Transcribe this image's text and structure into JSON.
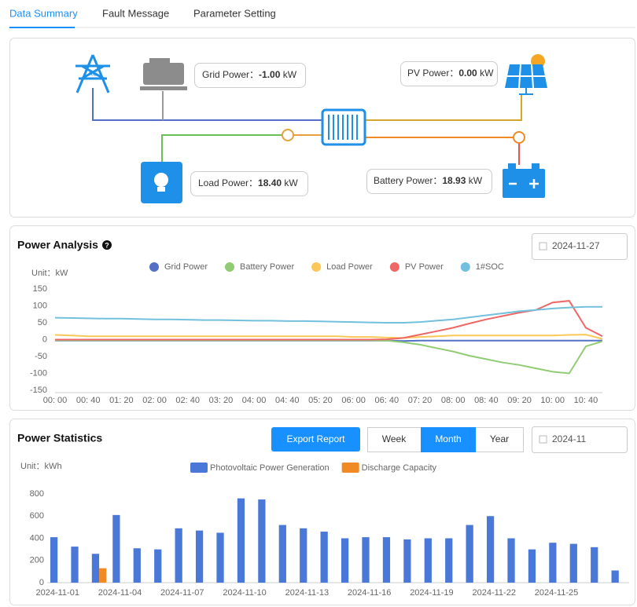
{
  "tabs": [
    "Data Summary",
    "Fault Message",
    "Parameter Setting"
  ],
  "overview": {
    "grid": {
      "label": "Grid Power：",
      "value": "-1.00",
      "unit": "kW"
    },
    "pv": {
      "label": "PV Power：",
      "value": "0.00",
      "unit": "kW"
    },
    "load": {
      "label": "Load Power：",
      "value": "18.40",
      "unit": "kW"
    },
    "battery": {
      "label": "Battery Power：",
      "value": "18.93",
      "unit": "kW"
    }
  },
  "analysis_panel": {
    "date": "2024-11-27"
  },
  "statistics_panel": {
    "export": "Export Report",
    "periods": [
      "Week",
      "Month",
      "Year"
    ],
    "date": "2024-11"
  },
  "chart_data": [
    {
      "type": "line",
      "title": "Power Analysis",
      "y_label": "Unit：kW",
      "x": [
        "00: 00",
        null,
        "00: 40",
        null,
        "01: 20",
        null,
        "02: 00",
        null,
        "02: 40",
        null,
        "03: 20",
        null,
        "04: 00",
        null,
        "04: 40",
        null,
        "05: 20",
        null,
        "06: 00",
        null,
        "06: 40",
        null,
        "07: 20",
        null,
        "08: 00",
        null,
        "08: 40",
        null,
        "09: 20",
        null,
        "10: 00",
        null,
        "10: 40",
        null
      ],
      "ylim": [
        -150,
        150
      ],
      "yticks": [
        -150,
        -100,
        -50,
        0,
        50,
        100,
        150
      ],
      "grid": false,
      "series": [
        {
          "name": "Grid Power",
          "color": "#5470c6",
          "values": [
            -3,
            -3,
            -3,
            -3,
            -3,
            -3,
            -3,
            -3,
            -3,
            -3,
            -3,
            -3,
            -3,
            -3,
            -3,
            -3,
            -3,
            -3,
            -3,
            -3,
            -3,
            -4,
            -3,
            -3,
            -3,
            -3,
            -3,
            -3,
            -3,
            -3,
            -3,
            -3,
            -3,
            -3
          ]
        },
        {
          "name": "Battery Power",
          "color": "#91cc75",
          "values": [
            -2,
            -2,
            -2,
            -2,
            -2,
            -2,
            -2,
            -2,
            -2,
            -2,
            -2,
            -2,
            -2,
            -2,
            -2,
            -2,
            -2,
            -2,
            -2,
            -2,
            -3,
            -8,
            -15,
            -25,
            -35,
            -48,
            -58,
            -68,
            -75,
            -85,
            -95,
            -100,
            -20,
            -5
          ]
        },
        {
          "name": "Load Power",
          "color": "#fac858",
          "values": [
            14,
            12,
            10,
            10,
            10,
            10,
            10,
            10,
            10,
            10,
            10,
            10,
            10,
            10,
            10,
            10,
            10,
            10,
            8,
            8,
            6,
            5,
            8,
            10,
            12,
            12,
            12,
            12,
            12,
            12,
            12,
            14,
            15,
            2
          ]
        },
        {
          "name": "PV Power",
          "color": "#ee6666",
          "values": [
            0,
            0,
            0,
            0,
            0,
            0,
            0,
            0,
            0,
            0,
            0,
            0,
            0,
            0,
            0,
            0,
            0,
            0,
            0,
            0,
            1,
            5,
            15,
            25,
            35,
            48,
            60,
            70,
            80,
            88,
            110,
            115,
            35,
            10
          ]
        },
        {
          "name": "1#SOC",
          "color": "#73c0de",
          "values": [
            65,
            64,
            63,
            62,
            62,
            61,
            60,
            60,
            59,
            58,
            58,
            57,
            56,
            56,
            55,
            55,
            54,
            53,
            52,
            51,
            50,
            50,
            52,
            56,
            60,
            66,
            72,
            78,
            84,
            88,
            92,
            95,
            97,
            97
          ]
        }
      ]
    },
    {
      "type": "bar",
      "title": "Power Statistics",
      "y_label": "Unit：kWh",
      "categories": [
        "2024-11-01",
        null,
        null,
        "2024-11-04",
        null,
        null,
        "2024-11-07",
        null,
        null,
        "2024-11-10",
        null,
        null,
        "2024-11-13",
        null,
        null,
        "2024-11-16",
        null,
        null,
        "2024-11-19",
        null,
        null,
        "2024-11-22",
        null,
        null,
        "2024-11-25",
        null,
        null,
        null
      ],
      "ylim": [
        0,
        800
      ],
      "yticks": [
        0,
        200,
        400,
        600,
        800
      ],
      "grid": false,
      "series": [
        {
          "name": "Photovoltaic Power Generation",
          "color": "#4a78d8",
          "values": [
            410,
            325,
            260,
            610,
            310,
            300,
            490,
            470,
            450,
            760,
            750,
            520,
            490,
            460,
            400,
            410,
            410,
            390,
            400,
            400,
            520,
            600,
            400,
            300,
            360,
            350,
            320,
            110
          ]
        },
        {
          "name": "Discharge Capacity",
          "color": "#f08a24",
          "values": [
            0,
            0,
            130,
            0,
            0,
            0,
            0,
            0,
            0,
            0,
            0,
            0,
            0,
            0,
            0,
            0,
            0,
            0,
            0,
            0,
            0,
            0,
            0,
            0,
            0,
            0,
            0,
            0
          ]
        }
      ]
    }
  ]
}
